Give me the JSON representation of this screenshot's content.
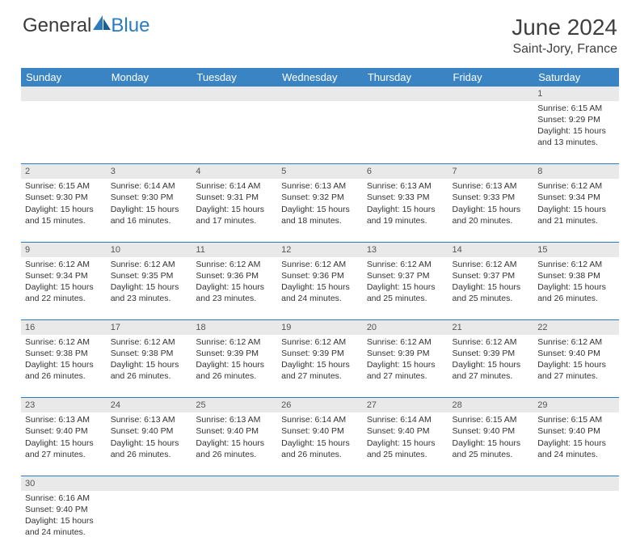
{
  "brand": {
    "part1": "General",
    "part2": "Blue"
  },
  "title": "June 2024",
  "location": "Saint-Jory, France",
  "colors": {
    "header_bg": "#3b84c4",
    "header_text": "#ffffff",
    "divider": "#2b7bbf",
    "daynum_bg": "#e9e9e9",
    "text": "#333333",
    "logo_gray": "#3a3a3a",
    "logo_blue": "#2b7bbf"
  },
  "weekday_labels": [
    "Sunday",
    "Monday",
    "Tuesday",
    "Wednesday",
    "Thursday",
    "Friday",
    "Saturday"
  ],
  "weeks": [
    [
      null,
      null,
      null,
      null,
      null,
      null,
      {
        "d": "1",
        "sr": "Sunrise: 6:15 AM",
        "ss": "Sunset: 9:29 PM",
        "dl1": "Daylight: 15 hours",
        "dl2": "and 13 minutes."
      }
    ],
    [
      {
        "d": "2",
        "sr": "Sunrise: 6:15 AM",
        "ss": "Sunset: 9:30 PM",
        "dl1": "Daylight: 15 hours",
        "dl2": "and 15 minutes."
      },
      {
        "d": "3",
        "sr": "Sunrise: 6:14 AM",
        "ss": "Sunset: 9:30 PM",
        "dl1": "Daylight: 15 hours",
        "dl2": "and 16 minutes."
      },
      {
        "d": "4",
        "sr": "Sunrise: 6:14 AM",
        "ss": "Sunset: 9:31 PM",
        "dl1": "Daylight: 15 hours",
        "dl2": "and 17 minutes."
      },
      {
        "d": "5",
        "sr": "Sunrise: 6:13 AM",
        "ss": "Sunset: 9:32 PM",
        "dl1": "Daylight: 15 hours",
        "dl2": "and 18 minutes."
      },
      {
        "d": "6",
        "sr": "Sunrise: 6:13 AM",
        "ss": "Sunset: 9:33 PM",
        "dl1": "Daylight: 15 hours",
        "dl2": "and 19 minutes."
      },
      {
        "d": "7",
        "sr": "Sunrise: 6:13 AM",
        "ss": "Sunset: 9:33 PM",
        "dl1": "Daylight: 15 hours",
        "dl2": "and 20 minutes."
      },
      {
        "d": "8",
        "sr": "Sunrise: 6:12 AM",
        "ss": "Sunset: 9:34 PM",
        "dl1": "Daylight: 15 hours",
        "dl2": "and 21 minutes."
      }
    ],
    [
      {
        "d": "9",
        "sr": "Sunrise: 6:12 AM",
        "ss": "Sunset: 9:34 PM",
        "dl1": "Daylight: 15 hours",
        "dl2": "and 22 minutes."
      },
      {
        "d": "10",
        "sr": "Sunrise: 6:12 AM",
        "ss": "Sunset: 9:35 PM",
        "dl1": "Daylight: 15 hours",
        "dl2": "and 23 minutes."
      },
      {
        "d": "11",
        "sr": "Sunrise: 6:12 AM",
        "ss": "Sunset: 9:36 PM",
        "dl1": "Daylight: 15 hours",
        "dl2": "and 23 minutes."
      },
      {
        "d": "12",
        "sr": "Sunrise: 6:12 AM",
        "ss": "Sunset: 9:36 PM",
        "dl1": "Daylight: 15 hours",
        "dl2": "and 24 minutes."
      },
      {
        "d": "13",
        "sr": "Sunrise: 6:12 AM",
        "ss": "Sunset: 9:37 PM",
        "dl1": "Daylight: 15 hours",
        "dl2": "and 25 minutes."
      },
      {
        "d": "14",
        "sr": "Sunrise: 6:12 AM",
        "ss": "Sunset: 9:37 PM",
        "dl1": "Daylight: 15 hours",
        "dl2": "and 25 minutes."
      },
      {
        "d": "15",
        "sr": "Sunrise: 6:12 AM",
        "ss": "Sunset: 9:38 PM",
        "dl1": "Daylight: 15 hours",
        "dl2": "and 26 minutes."
      }
    ],
    [
      {
        "d": "16",
        "sr": "Sunrise: 6:12 AM",
        "ss": "Sunset: 9:38 PM",
        "dl1": "Daylight: 15 hours",
        "dl2": "and 26 minutes."
      },
      {
        "d": "17",
        "sr": "Sunrise: 6:12 AM",
        "ss": "Sunset: 9:38 PM",
        "dl1": "Daylight: 15 hours",
        "dl2": "and 26 minutes."
      },
      {
        "d": "18",
        "sr": "Sunrise: 6:12 AM",
        "ss": "Sunset: 9:39 PM",
        "dl1": "Daylight: 15 hours",
        "dl2": "and 26 minutes."
      },
      {
        "d": "19",
        "sr": "Sunrise: 6:12 AM",
        "ss": "Sunset: 9:39 PM",
        "dl1": "Daylight: 15 hours",
        "dl2": "and 27 minutes."
      },
      {
        "d": "20",
        "sr": "Sunrise: 6:12 AM",
        "ss": "Sunset: 9:39 PM",
        "dl1": "Daylight: 15 hours",
        "dl2": "and 27 minutes."
      },
      {
        "d": "21",
        "sr": "Sunrise: 6:12 AM",
        "ss": "Sunset: 9:39 PM",
        "dl1": "Daylight: 15 hours",
        "dl2": "and 27 minutes."
      },
      {
        "d": "22",
        "sr": "Sunrise: 6:12 AM",
        "ss": "Sunset: 9:40 PM",
        "dl1": "Daylight: 15 hours",
        "dl2": "and 27 minutes."
      }
    ],
    [
      {
        "d": "23",
        "sr": "Sunrise: 6:13 AM",
        "ss": "Sunset: 9:40 PM",
        "dl1": "Daylight: 15 hours",
        "dl2": "and 27 minutes."
      },
      {
        "d": "24",
        "sr": "Sunrise: 6:13 AM",
        "ss": "Sunset: 9:40 PM",
        "dl1": "Daylight: 15 hours",
        "dl2": "and 26 minutes."
      },
      {
        "d": "25",
        "sr": "Sunrise: 6:13 AM",
        "ss": "Sunset: 9:40 PM",
        "dl1": "Daylight: 15 hours",
        "dl2": "and 26 minutes."
      },
      {
        "d": "26",
        "sr": "Sunrise: 6:14 AM",
        "ss": "Sunset: 9:40 PM",
        "dl1": "Daylight: 15 hours",
        "dl2": "and 26 minutes."
      },
      {
        "d": "27",
        "sr": "Sunrise: 6:14 AM",
        "ss": "Sunset: 9:40 PM",
        "dl1": "Daylight: 15 hours",
        "dl2": "and 25 minutes."
      },
      {
        "d": "28",
        "sr": "Sunrise: 6:15 AM",
        "ss": "Sunset: 9:40 PM",
        "dl1": "Daylight: 15 hours",
        "dl2": "and 25 minutes."
      },
      {
        "d": "29",
        "sr": "Sunrise: 6:15 AM",
        "ss": "Sunset: 9:40 PM",
        "dl1": "Daylight: 15 hours",
        "dl2": "and 24 minutes."
      }
    ],
    [
      {
        "d": "30",
        "sr": "Sunrise: 6:16 AM",
        "ss": "Sunset: 9:40 PM",
        "dl1": "Daylight: 15 hours",
        "dl2": "and 24 minutes."
      },
      null,
      null,
      null,
      null,
      null,
      null
    ]
  ]
}
